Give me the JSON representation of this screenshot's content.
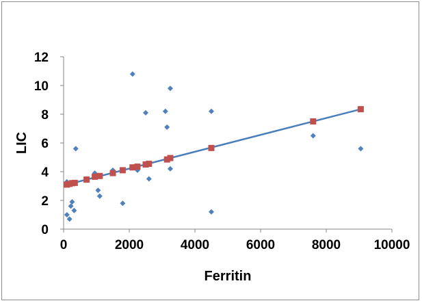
{
  "chart_data": {
    "type": "scatter",
    "title": "",
    "xlabel": "Ferritin",
    "ylabel": "LIC",
    "xlim": [
      0,
      10000
    ],
    "ylim": [
      0,
      12
    ],
    "x_ticks": [
      "0",
      "2000",
      "4000",
      "6000",
      "8000",
      "10000"
    ],
    "y_ticks": [
      "0",
      "2",
      "4",
      "6",
      "8",
      "10",
      "12"
    ],
    "x_tick_values": [
      0,
      2000,
      4000,
      6000,
      8000,
      10000
    ],
    "y_tick_values": [
      0,
      2,
      4,
      6,
      8,
      10,
      12
    ],
    "grid": false,
    "legend": "none",
    "series": [
      {
        "marker": "diamond",
        "color": "#4f81bd",
        "points": [
          [
            100,
            3.3
          ],
          [
            100,
            1.0
          ],
          [
            180,
            0.7
          ],
          [
            220,
            1.6
          ],
          [
            260,
            1.9
          ],
          [
            320,
            1.3
          ],
          [
            370,
            5.6
          ],
          [
            700,
            3.5
          ],
          [
            950,
            3.9
          ],
          [
            1050,
            2.7
          ],
          [
            1100,
            2.3
          ],
          [
            1500,
            4.1
          ],
          [
            1800,
            1.8
          ],
          [
            2100,
            10.8
          ],
          [
            2250,
            4.1
          ],
          [
            2500,
            8.1
          ],
          [
            2600,
            3.5
          ],
          [
            3100,
            8.2
          ],
          [
            3150,
            7.1
          ],
          [
            3250,
            9.8
          ],
          [
            3250,
            4.2
          ],
          [
            4500,
            8.2
          ],
          [
            4500,
            1.2
          ],
          [
            7600,
            6.5
          ],
          [
            9050,
            5.6
          ]
        ]
      },
      {
        "marker": "square",
        "color": "#c0504d",
        "points": [
          [
            100,
            3.1
          ],
          [
            180,
            3.15
          ],
          [
            260,
            3.2
          ],
          [
            340,
            3.22
          ],
          [
            700,
            3.45
          ],
          [
            950,
            3.65
          ],
          [
            1100,
            3.7
          ],
          [
            1500,
            3.9
          ],
          [
            1800,
            4.1
          ],
          [
            2100,
            4.3
          ],
          [
            2250,
            4.35
          ],
          [
            2500,
            4.5
          ],
          [
            2600,
            4.55
          ],
          [
            3150,
            4.85
          ],
          [
            3250,
            4.95
          ],
          [
            4500,
            5.65
          ],
          [
            7600,
            7.5
          ],
          [
            9050,
            8.35
          ]
        ]
      }
    ],
    "trendline": {
      "color": "#4a7ebb",
      "points": [
        [
          100,
          3.1
        ],
        [
          9050,
          8.35
        ]
      ]
    }
  }
}
